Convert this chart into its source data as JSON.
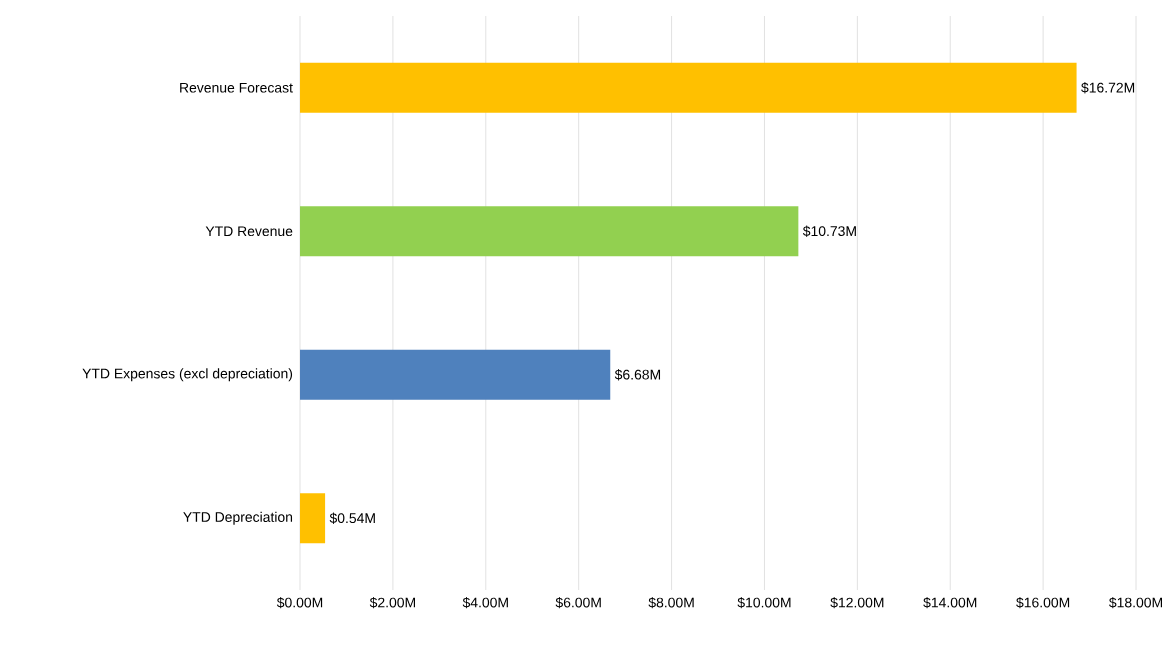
{
  "chart_data": {
    "type": "bar",
    "orientation": "horizontal",
    "categories": [
      "Revenue Forecast",
      "YTD Revenue",
      "YTD Expenses (excl depreciation)",
      "YTD Depreciation"
    ],
    "values": [
      16.72,
      10.73,
      6.68,
      0.54
    ],
    "colors": [
      "#ffc000",
      "#92d050",
      "#4f81bd",
      "#ffc000"
    ],
    "value_labels": [
      "$16.72M",
      "$10.73M",
      "$6.68M",
      "$0.54M"
    ],
    "xlim": [
      0,
      18
    ],
    "xticks": [
      {
        "value": 0,
        "label": "$0.00M"
      },
      {
        "value": 2,
        "label": "$2.00M"
      },
      {
        "value": 4,
        "label": "$4.00M"
      },
      {
        "value": 6,
        "label": "$6.00M"
      },
      {
        "value": 8,
        "label": "$8.00M"
      },
      {
        "value": 10,
        "label": "$10.00M"
      },
      {
        "value": 12,
        "label": "$12.00M"
      },
      {
        "value": 14,
        "label": "$14.00M"
      },
      {
        "value": 16,
        "label": "$16.00M"
      },
      {
        "value": 18,
        "label": "$18.00M"
      }
    ],
    "grid": "x"
  }
}
